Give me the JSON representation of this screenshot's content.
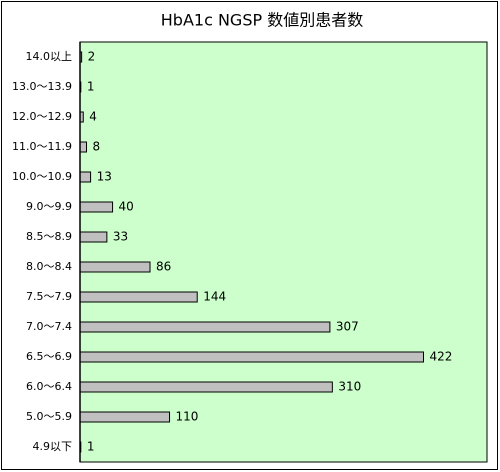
{
  "chart_data": {
    "type": "bar",
    "orientation": "horizontal",
    "title": "HbA1c NGSP 数値別患者数",
    "categories": [
      "14.0以上",
      "13.0～13.9",
      "12.0～12.9",
      "11.0～11.9",
      "10.0～10.9",
      "9.0～9.9",
      "8.5～8.9",
      "8.0～8.4",
      "7.5～7.9",
      "7.0～7.4",
      "6.5～6.9",
      "6.0～6.4",
      "5.0～5.9",
      "4.9以下"
    ],
    "values": [
      2,
      1,
      4,
      8,
      13,
      40,
      33,
      86,
      144,
      307,
      422,
      310,
      110,
      1
    ],
    "color": "#c0c0c0",
    "background": "#ccffcc",
    "xlim": [
      0,
      500
    ]
  }
}
